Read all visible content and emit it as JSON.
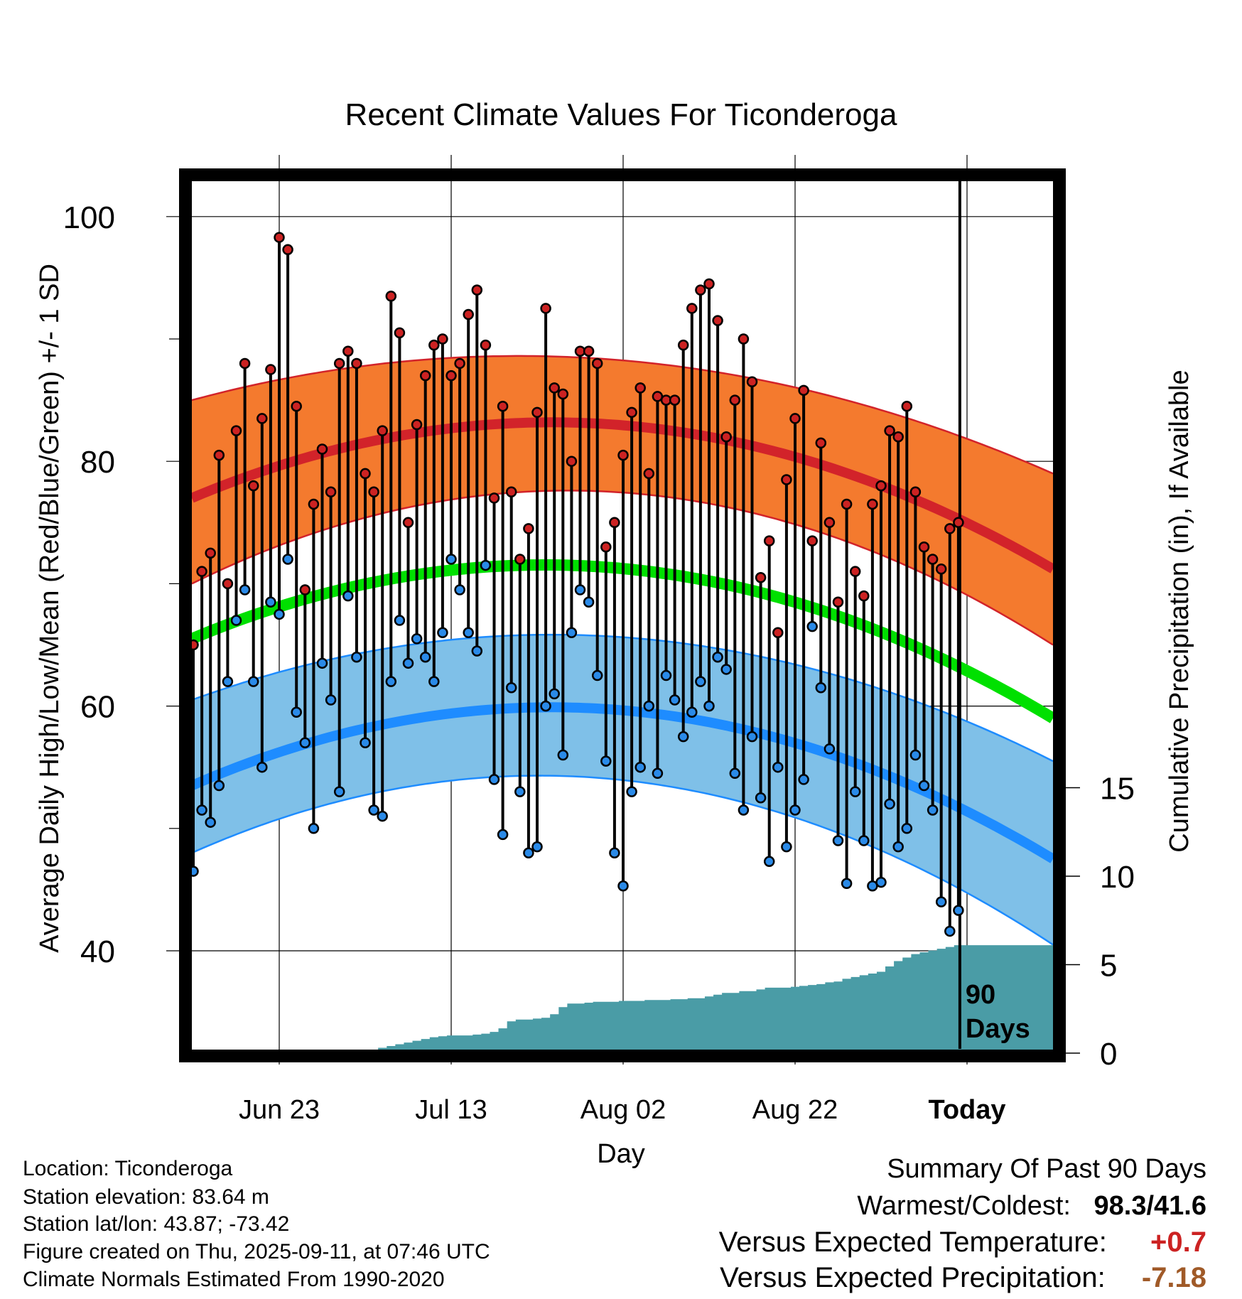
{
  "chart_data": {
    "type": "line",
    "title": "Recent Climate Values For Ticonderoga",
    "xlabel": "Day",
    "ylabel": "Average Daily High/Low/Mean (Red/Blue/Green) +/- 1 SD",
    "y2label": "Cumulative Precipitation (in), If Available",
    "x_tick_labels": [
      "Jun 23",
      "Jul 13",
      "Aug 02",
      "Aug 22",
      "Today"
    ],
    "y_ticks": [
      40,
      60,
      80,
      100
    ],
    "y2_ticks": [
      0,
      5,
      10,
      15
    ],
    "today_marker": "90\nDays",
    "grid": true,
    "colors": {
      "high_band": "#f47a2e",
      "high_line": "#d2232a",
      "high_edge": "#d2232a",
      "low_band": "#7fc0e8",
      "low_line": "#1e8cff",
      "low_edge": "#1e8cff",
      "mean_line": "#00e000",
      "precip": "#4a9ca6",
      "high_dot": "#cc2222",
      "low_dot": "#2a8ae8"
    },
    "series": [
      {
        "name": "High",
        "values": [
          65,
          71,
          72.5,
          80.5,
          70,
          82.5,
          88,
          78,
          83.5,
          87.5,
          98.3,
          97.3,
          84.5,
          69.5,
          76.5,
          81,
          77.5,
          88,
          89,
          88,
          79,
          77.5,
          82.5,
          93.5,
          90.5,
          75,
          83,
          87,
          89.5,
          90,
          87,
          88,
          92,
          94,
          89.5,
          77,
          84.5,
          77.5,
          72,
          74.5,
          84,
          92.5,
          86,
          85.5,
          80,
          89,
          89,
          88,
          73,
          75,
          80.5,
          84,
          86,
          79,
          85.3,
          85,
          85,
          89.5,
          92.5,
          94,
          94.5,
          91.5,
          82,
          85,
          90,
          86.5,
          70.5,
          73.5,
          66,
          78.5,
          83.5,
          85.8,
          73.5,
          81.5,
          75,
          68.5,
          76.5,
          71,
          69,
          76.5,
          78,
          82.5,
          82,
          84.5,
          77.5,
          73,
          72,
          71.2,
          74.5,
          75
        ]
      },
      {
        "name": "Low",
        "values": [
          46.5,
          51.5,
          50.5,
          53.5,
          62,
          67,
          69.5,
          62,
          55,
          68.5,
          67.5,
          72,
          59.5,
          57,
          50,
          63.5,
          60.5,
          53,
          69,
          64,
          57,
          51.5,
          51,
          62,
          67,
          63.5,
          65.5,
          64,
          62,
          66,
          72,
          69.5,
          66,
          64.5,
          71.5,
          54,
          49.5,
          61.5,
          53,
          48,
          48.5,
          60,
          61,
          56,
          66,
          69.5,
          68.5,
          62.5,
          55.5,
          48,
          45.3,
          53,
          55,
          60,
          54.5,
          62.5,
          60.5,
          57.5,
          59.5,
          62,
          60,
          64,
          63,
          54.5,
          51.5,
          57.5,
          52.5,
          47.3,
          55,
          48.5,
          51.5,
          54,
          66.5,
          61.5,
          56.5,
          49,
          45.5,
          53,
          49,
          45.3,
          45.6,
          52,
          48.5,
          50,
          56,
          53.5,
          51.5,
          44,
          41.6,
          43.3
        ]
      },
      {
        "name": "Precip",
        "values": [
          0,
          0,
          0,
          0,
          0,
          0,
          0,
          0,
          0,
          0,
          0,
          0,
          0,
          0,
          0,
          0,
          0,
          0,
          0,
          0.1,
          0.2,
          0.2,
          0.3,
          0.4,
          0.5,
          0.6,
          0.7,
          0.8,
          0.9,
          0.95,
          1,
          1,
          1,
          1.05,
          1.1,
          1.2,
          1.4,
          1.8,
          1.9,
          1.9,
          1.95,
          2.0,
          2.2,
          2.6,
          2.8,
          2.8,
          2.85,
          2.9,
          2.9,
          2.9,
          2.95,
          2.95,
          2.95,
          3.0,
          3.0,
          3.0,
          3.05,
          3.05,
          3.1,
          3.1,
          3.2,
          3.3,
          3.4,
          3.4,
          3.5,
          3.5,
          3.6,
          3.7,
          3.7,
          3.7,
          3.75,
          3.8,
          3.85,
          3.9,
          4.0,
          4.05,
          4.2,
          4.3,
          4.4,
          4.5,
          4.6,
          4.9,
          5.2,
          5.4,
          5.6,
          5.7,
          5.8,
          5.9,
          6.0,
          6.1
        ]
      }
    ],
    "normals": {
      "high_mean_start": 77,
      "high_mean_peak": 82.8,
      "high_mean_end": 71.2,
      "high_sd_upper_start": 85,
      "high_sd_upper_peak": 88.5,
      "high_sd_upper_end": 79,
      "high_sd_lower_start": 70,
      "high_sd_lower_peak": 77,
      "high_sd_lower_end": 65,
      "mean_start": 65.5,
      "mean_peak": 71.2,
      "mean_end": 59,
      "low_mean_start": 53.5,
      "low_mean_peak": 59.5,
      "low_mean_end": 47.5,
      "low_sd_upper_start": 60.5,
      "low_sd_upper_peak": 65.5,
      "low_sd_upper_end": 55.5,
      "low_sd_lower_start": 48,
      "low_sd_lower_peak": 54,
      "low_sd_lower_end": 40.5
    }
  },
  "info": {
    "location": "Location: Ticonderoga",
    "elevation": "Station elevation: 83.64 m",
    "latlon": "Station lat/lon: 43.87; -73.42",
    "created": "Figure created on Thu, 2025-09-11, at 07:46 UTC",
    "normals": "Climate Normals Estimated From 1990-2020"
  },
  "summary": {
    "title": "Summary Of Past 90 Days",
    "warm_cold_label": "Warmest/Coldest:",
    "warm_cold_value": "98.3/41.6",
    "temp_label": "Versus Expected Temperature:",
    "temp_value": "+0.7",
    "temp_color": "#cc2222",
    "precip_label": "Versus Expected Precipitation:",
    "precip_value": "-7.18",
    "precip_color": "#a05a28"
  }
}
